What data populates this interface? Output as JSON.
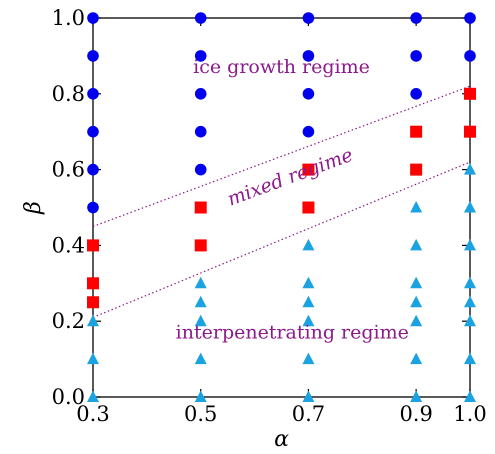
{
  "chart_data": {
    "type": "scatter",
    "title": "",
    "xlabel": "α",
    "ylabel": "β",
    "xlim": [
      0.3,
      1.0
    ],
    "ylim": [
      0.0,
      1.0
    ],
    "x_ticks": [
      "0.3",
      "0.5",
      "0.7",
      "0.9",
      "1.0"
    ],
    "x_tick_values": [
      0.3,
      0.5,
      0.7,
      0.9,
      1.0
    ],
    "y_ticks": [
      "0.0",
      "0.2",
      "0.4",
      "0.6",
      "0.8",
      "1.0"
    ],
    "y_tick_values": [
      0.0,
      0.2,
      0.4,
      0.6,
      0.8,
      1.0
    ],
    "grid": false,
    "series": [
      {
        "marker": "circle",
        "color": "#0000ee",
        "points": [
          [
            0.3,
            1.0
          ],
          [
            0.3,
            0.9
          ],
          [
            0.3,
            0.8
          ],
          [
            0.3,
            0.7
          ],
          [
            0.3,
            0.6
          ],
          [
            0.3,
            0.5
          ],
          [
            0.5,
            1.0
          ],
          [
            0.5,
            0.9
          ],
          [
            0.5,
            0.8
          ],
          [
            0.5,
            0.7
          ],
          [
            0.5,
            0.6
          ],
          [
            0.7,
            1.0
          ],
          [
            0.7,
            0.9
          ],
          [
            0.7,
            0.8
          ],
          [
            0.7,
            0.7
          ],
          [
            0.9,
            1.0
          ],
          [
            0.9,
            0.9
          ],
          [
            0.9,
            0.8
          ],
          [
            1.0,
            1.0
          ],
          [
            1.0,
            0.9
          ]
        ]
      },
      {
        "marker": "square",
        "color": "#ff0000",
        "points": [
          [
            0.3,
            0.4
          ],
          [
            0.3,
            0.3
          ],
          [
            0.3,
            0.25
          ],
          [
            0.5,
            0.5
          ],
          [
            0.5,
            0.4
          ],
          [
            0.7,
            0.6
          ],
          [
            0.7,
            0.5
          ],
          [
            0.9,
            0.7
          ],
          [
            0.9,
            0.6
          ],
          [
            1.0,
            0.8
          ],
          [
            1.0,
            0.7
          ]
        ]
      },
      {
        "marker": "triangle",
        "color": "#1aa3e0",
        "points": [
          [
            0.3,
            0.2
          ],
          [
            0.3,
            0.1
          ],
          [
            0.3,
            0.0
          ],
          [
            0.5,
            0.3
          ],
          [
            0.5,
            0.25
          ],
          [
            0.5,
            0.2
          ],
          [
            0.5,
            0.1
          ],
          [
            0.5,
            0.0
          ],
          [
            0.7,
            0.4
          ],
          [
            0.7,
            0.3
          ],
          [
            0.7,
            0.25
          ],
          [
            0.7,
            0.2
          ],
          [
            0.7,
            0.1
          ],
          [
            0.7,
            0.0
          ],
          [
            0.9,
            0.5
          ],
          [
            0.9,
            0.4
          ],
          [
            0.9,
            0.3
          ],
          [
            0.9,
            0.25
          ],
          [
            0.9,
            0.2
          ],
          [
            0.9,
            0.1
          ],
          [
            0.9,
            0.0
          ],
          [
            1.0,
            0.6
          ],
          [
            1.0,
            0.5
          ],
          [
            1.0,
            0.4
          ],
          [
            1.0,
            0.3
          ],
          [
            1.0,
            0.25
          ],
          [
            1.0,
            0.2
          ],
          [
            1.0,
            0.1
          ],
          [
            1.0,
            0.0
          ]
        ]
      }
    ],
    "boundary_lines": [
      {
        "style": "dotted",
        "color": "#8b1a8b",
        "from": [
          0.3,
          0.45
        ],
        "to": [
          1.0,
          0.82
        ]
      },
      {
        "style": "dotted",
        "color": "#8b1a8b",
        "from": [
          0.3,
          0.21
        ],
        "to": [
          1.0,
          0.62
        ]
      }
    ],
    "annotations": [
      {
        "text": "ice growth regime",
        "x": 0.65,
        "y": 0.855,
        "style": "normal"
      },
      {
        "text": "mixed regime",
        "x": 0.67,
        "y": 0.565,
        "style": "italic",
        "rotated": true
      },
      {
        "text": "interpenetrating regime",
        "x": 0.67,
        "y": 0.155,
        "style": "normal"
      }
    ]
  }
}
